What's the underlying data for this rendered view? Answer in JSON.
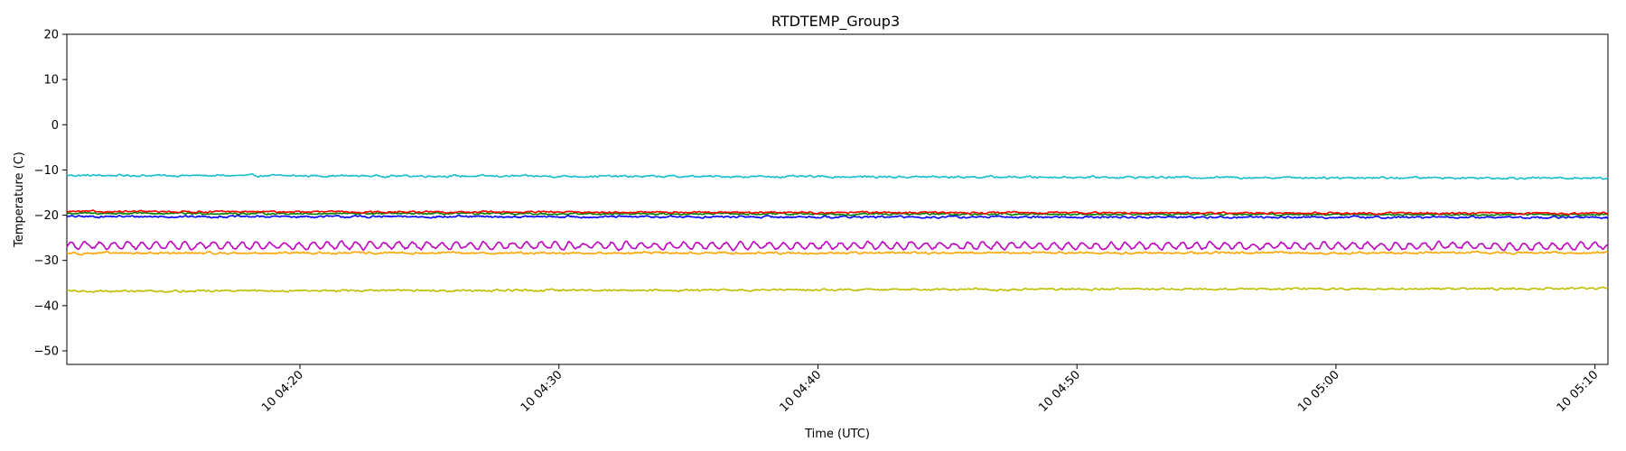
{
  "chart_data": {
    "type": "line",
    "title": "RTDTEMP_Group3",
    "xlabel": "Time (UTC)",
    "ylabel": "Temperature (C)",
    "x_start": "10 04:11",
    "x_end": "10 05:10:30",
    "xlim": [
      "10 04:11",
      "10 05:10:30"
    ],
    "ylim": [
      -53,
      20
    ],
    "yticks": [
      20,
      10,
      0,
      -10,
      -20,
      -30,
      -40,
      -50
    ],
    "xticks": [
      "10 04:20",
      "10 04:30",
      "10 04:40",
      "10 04:50",
      "10 05:00",
      "10 05:10"
    ],
    "grid": false,
    "legend": "none",
    "series": [
      {
        "color": "#17becf",
        "start": -11.2,
        "end": -11.8,
        "noise": 0.35,
        "osc_amp": 0,
        "osc_period_min": 0
      },
      {
        "color": "#0000ff",
        "start": -20.3,
        "end": -20.5,
        "noise": 0.35,
        "osc_amp": 0,
        "osc_period_min": 0
      },
      {
        "color": "#008000",
        "start": -19.6,
        "end": -19.9,
        "noise": 0.3,
        "osc_amp": 0,
        "osc_period_min": 0
      },
      {
        "color": "#ff0000",
        "start": -19.2,
        "end": -19.6,
        "noise": 0.3,
        "osc_amp": 0,
        "osc_period_min": 0
      },
      {
        "color": "#c000c0",
        "start": -26.8,
        "end": -26.9,
        "noise": 0.4,
        "osc_amp": 1.1,
        "osc_period_min": 0.55
      },
      {
        "color": "#ffa500",
        "start": -28.4,
        "end": -28.3,
        "noise": 0.35,
        "osc_amp": 0,
        "osc_period_min": 0
      },
      {
        "color": "#bfbf00",
        "start": -36.8,
        "end": -36.2,
        "noise": 0.35,
        "osc_amp": 0,
        "osc_period_min": 0
      }
    ]
  }
}
